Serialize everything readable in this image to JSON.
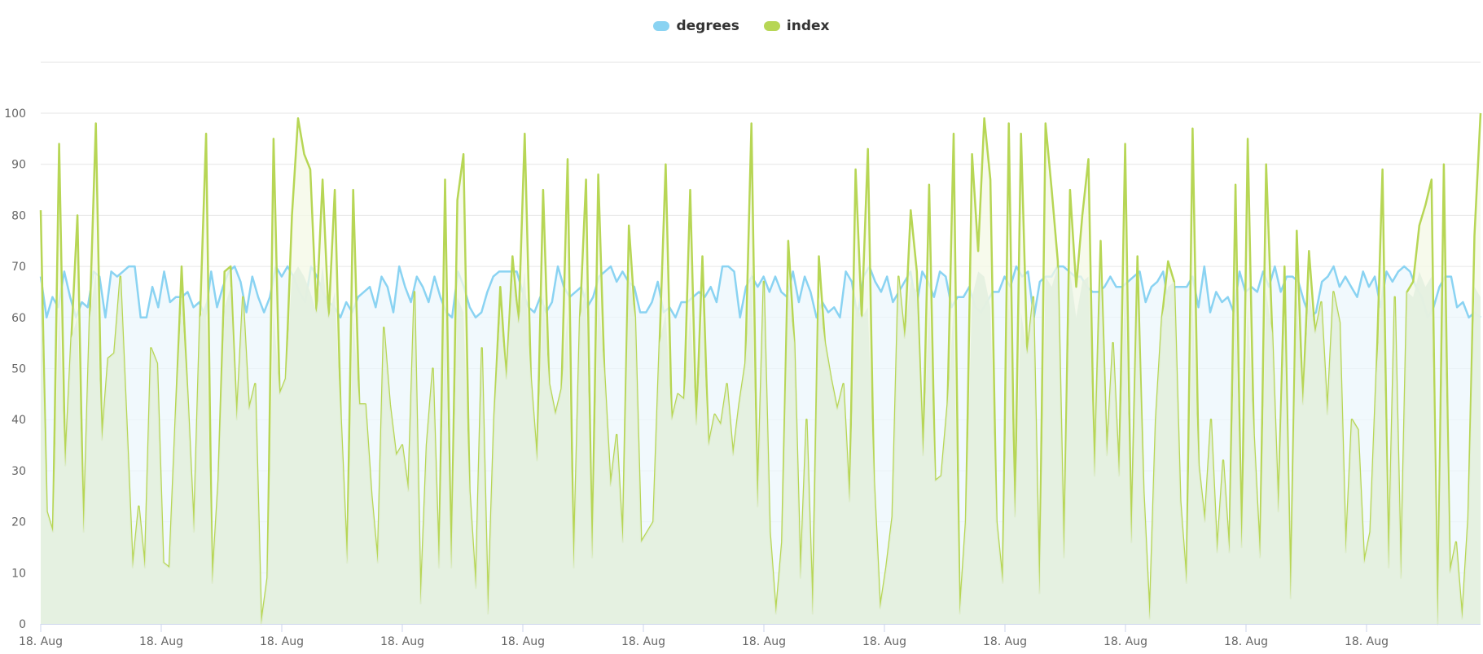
{
  "legend": {
    "items": [
      {
        "name": "degrees",
        "color": "#8ad3f2"
      },
      {
        "name": "index",
        "color": "#b7d655"
      }
    ]
  },
  "colors": {
    "degrees_line": "#8ad3f2",
    "degrees_fill": "#ecf7fc",
    "index_line": "#b7d655",
    "index_fill": "#e3f0e0",
    "index_fill_over": "#f4f8e6",
    "grid": "#e6e6e6",
    "axis": "#ccd6eb",
    "tick_label": "#666666"
  },
  "chart_data": {
    "type": "area",
    "title": "",
    "xlabel": "",
    "ylabel": "",
    "ylim": [
      0,
      110
    ],
    "grid": true,
    "legend_position": "top",
    "y_ticks": [
      0,
      10,
      20,
      30,
      40,
      50,
      60,
      70,
      80,
      90,
      100
    ],
    "x_tick_labels": [
      "18. Aug",
      "18. Aug",
      "18. Aug",
      "18. Aug",
      "18. Aug",
      "18. Aug",
      "18. Aug",
      "18. Aug",
      "18. Aug",
      "18. Aug",
      "18. Aug",
      "18. Aug"
    ],
    "series": [
      {
        "name": "degrees",
        "values": [
          68,
          60,
          64,
          62,
          69,
          64,
          60,
          63,
          62,
          69,
          68,
          60,
          69,
          68,
          69,
          70,
          70,
          60,
          60,
          66,
          62,
          69,
          63,
          64,
          64,
          65,
          62,
          63,
          60,
          69,
          62,
          66,
          69,
          70,
          67,
          61,
          68,
          64,
          61,
          64,
          70,
          68,
          70,
          68,
          65,
          63,
          70,
          68,
          65,
          63,
          62,
          60,
          63,
          61,
          64,
          65,
          66,
          62,
          68,
          66,
          61,
          70,
          66,
          63,
          68,
          66,
          63,
          68,
          64,
          61,
          60,
          69,
          66,
          62,
          60,
          61,
          65,
          68,
          69,
          69,
          69,
          69,
          65,
          62,
          61,
          64,
          61,
          63,
          70,
          66,
          64,
          65,
          66,
          62,
          64,
          68,
          69,
          70,
          67,
          69,
          67,
          66,
          61,
          61,
          63,
          67,
          61,
          62,
          60,
          63,
          63,
          64,
          65,
          64,
          66,
          63,
          70,
          70,
          69,
          60,
          66,
          68,
          66,
          68,
          65,
          68,
          65,
          64,
          69,
          63,
          68,
          65,
          60,
          63,
          61,
          62,
          60,
          69,
          67,
          60,
          68,
          70,
          67,
          65,
          68,
          63,
          65,
          67,
          69,
          62,
          69,
          67,
          64,
          69,
          68,
          62,
          64,
          64,
          66,
          62,
          61,
          63,
          65,
          65,
          68,
          66,
          70,
          68,
          69,
          60,
          67,
          68,
          68,
          70,
          70,
          69,
          68,
          68,
          66,
          65,
          65,
          66,
          68,
          66,
          66,
          67,
          68,
          69,
          63,
          66,
          67,
          69,
          62,
          66,
          66,
          66,
          68,
          62,
          70,
          61,
          65,
          63,
          64,
          61,
          69,
          65,
          66,
          65,
          69,
          66,
          70,
          65,
          68,
          68,
          67,
          63,
          60,
          61,
          67,
          68,
          70,
          66,
          68,
          66,
          64,
          69,
          66,
          68,
          62,
          69,
          67,
          69,
          70,
          69,
          66,
          64,
          60,
          62,
          66,
          68,
          68,
          62,
          63,
          60,
          61,
          60
        ],
        "color": "#8ad3f2"
      },
      {
        "name": "index",
        "values": [
          81,
          22,
          18,
          94,
          31,
          56,
          80,
          18,
          60,
          98,
          36,
          52,
          53,
          68,
          40,
          11,
          23,
          11,
          54,
          51,
          12,
          11,
          40,
          70,
          44,
          18,
          60,
          96,
          8,
          28,
          69,
          70,
          40,
          64,
          42,
          47,
          0,
          9,
          95,
          45,
          48,
          80,
          99,
          92,
          89,
          61,
          87,
          60,
          85,
          40,
          12,
          85,
          43,
          43,
          25,
          12,
          58,
          43,
          33,
          35,
          26,
          65,
          4,
          35,
          50,
          11,
          87,
          11,
          83,
          92,
          26,
          7,
          54,
          2,
          40,
          66,
          48,
          72,
          59,
          96,
          48,
          32,
          85,
          47,
          41,
          46,
          91,
          11,
          60,
          87,
          13,
          88,
          49,
          27,
          37,
          16,
          78,
          60,
          16,
          18,
          20,
          55,
          90,
          40,
          45,
          44,
          85,
          39,
          72,
          35,
          41,
          39,
          47,
          33,
          43,
          51,
          98,
          23,
          67,
          18,
          2,
          16,
          75,
          55,
          9,
          40,
          2,
          72,
          55,
          48,
          42,
          47,
          24,
          89,
          60,
          93,
          28,
          3,
          11,
          21,
          68,
          56,
          81,
          69,
          33,
          86,
          28,
          29,
          43,
          96,
          2,
          20,
          92,
          73,
          99,
          87,
          20,
          8,
          98,
          21,
          96,
          53,
          64,
          6,
          98,
          85,
          71,
          13,
          85,
          66,
          80,
          91,
          29,
          75,
          33,
          55,
          29,
          94,
          16,
          72,
          26,
          1,
          40,
          60,
          71,
          67,
          24,
          8,
          97,
          31,
          20,
          40,
          14,
          32,
          14,
          86,
          15,
          95,
          37,
          13,
          90,
          57,
          22,
          70,
          5,
          77,
          43,
          73,
          57,
          63,
          41,
          65,
          59,
          14,
          40,
          38,
          12,
          18,
          49,
          89,
          11,
          64,
          9,
          65,
          67,
          78,
          82,
          87,
          0,
          90,
          10,
          16,
          1,
          21,
          76,
          100
        ],
        "color": "#b7d655"
      }
    ]
  }
}
